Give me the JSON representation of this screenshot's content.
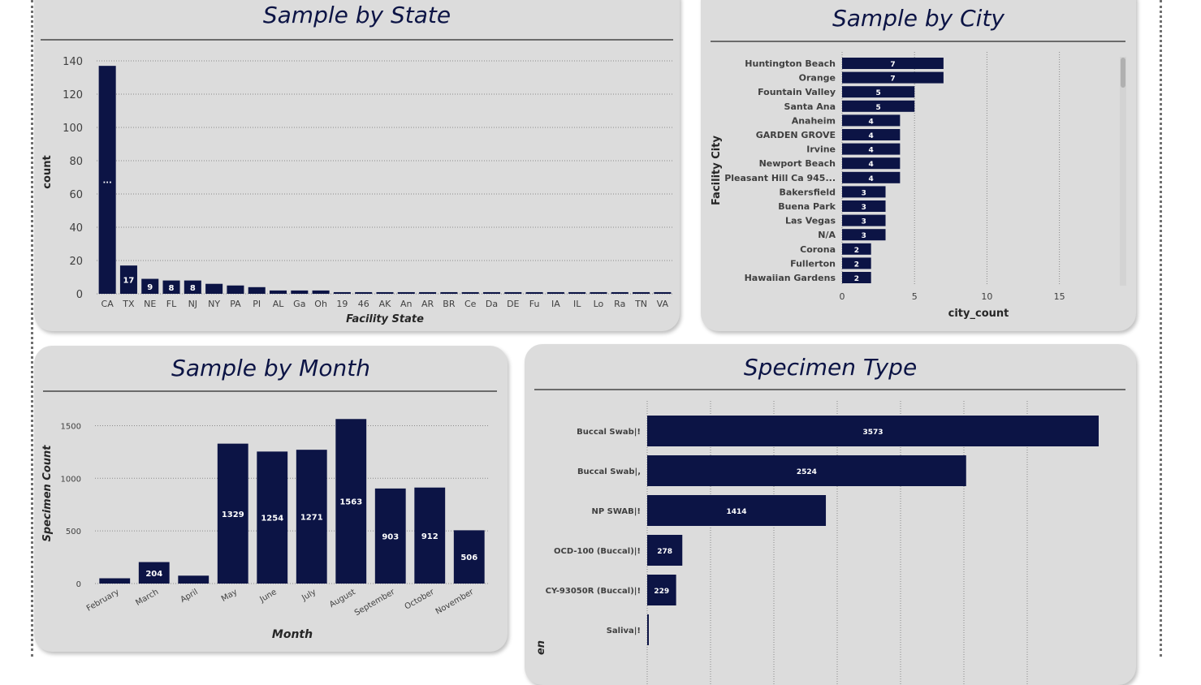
{
  "state": {
    "title": "Sample by State",
    "chart_data": {
      "type": "bar",
      "xlabel": "Facility State",
      "ylabel": "count",
      "ylim": [
        0,
        140
      ],
      "yticks": [
        0,
        20,
        40,
        60,
        80,
        100,
        120,
        140
      ],
      "categories": [
        "CA",
        "TX",
        "NE",
        "FL",
        "NJ",
        "NY",
        "PA",
        "PI",
        "AL",
        "Ga",
        "Oh",
        "19",
        "46",
        "AK",
        "An",
        "AR",
        "BR",
        "Ce",
        "Da",
        "DE",
        "Fu",
        "IA",
        "IL",
        "Lo",
        "Ra",
        "TN",
        "VA"
      ],
      "values": [
        137,
        17,
        9,
        8,
        8,
        6,
        5,
        4,
        2,
        2,
        2,
        1,
        1,
        1,
        1,
        1,
        1,
        1,
        1,
        1,
        1,
        1,
        1,
        1,
        1,
        1,
        1
      ],
      "data_labels": [
        "...",
        "17",
        "9",
        "8",
        "8",
        "",
        "",
        "",
        "",
        "",
        "",
        "",
        "",
        "",
        "",
        "",
        "",
        "",
        "",
        "",
        "",
        "",
        "",
        "",
        "",
        "",
        ""
      ],
      "grid": "dotted horizontal",
      "bar_color": "#0c1445"
    }
  },
  "city": {
    "title": "Sample by City",
    "chart_data": {
      "type": "bar",
      "orientation": "horizontal",
      "xlabel": "city_count",
      "ylabel": "Facility City",
      "xlim": [
        0,
        19
      ],
      "xticks": [
        0,
        5,
        10,
        15
      ],
      "categories": [
        "Huntington Beach",
        "Orange",
        "Fountain Valley",
        "Santa Ana",
        "Anaheim",
        "GARDEN GROVE",
        "Irvine",
        "Newport Beach",
        "Pleasant Hill Ca 945...",
        "Bakersfield",
        "Buena Park",
        "Las Vegas",
        "N/A",
        "Corona",
        "Fullerton",
        "Hawaiian Gardens"
      ],
      "values": [
        7,
        7,
        5,
        5,
        4,
        4,
        4,
        4,
        4,
        3,
        3,
        3,
        3,
        2,
        2,
        2
      ],
      "grid": "dotted vertical",
      "bar_color": "#0c1445"
    }
  },
  "month": {
    "title": "Sample by Month",
    "chart_data": {
      "type": "bar",
      "xlabel": "Month",
      "ylabel": "Specimen Count",
      "ylim": [
        0,
        1650
      ],
      "yticks": [
        0,
        500,
        1000,
        1500
      ],
      "categories": [
        "February",
        "March",
        "April",
        "May",
        "June",
        "July",
        "August",
        "September",
        "October",
        "November"
      ],
      "values": [
        50,
        204,
        75,
        1329,
        1254,
        1271,
        1563,
        903,
        912,
        506
      ],
      "data_labels": [
        "",
        "204",
        "",
        "1329",
        "1254",
        "1271",
        "1563",
        "903",
        "912",
        "506"
      ],
      "grid": "dotted horizontal",
      "bar_color": "#0c1445"
    }
  },
  "specimen": {
    "title": "Specimen Type",
    "chart_data": {
      "type": "bar",
      "orientation": "horizontal",
      "ylabel": "en",
      "xlim": [
        0,
        3700
      ],
      "categories": [
        "Buccal Swab|!",
        "Buccal Swab|,",
        "NP SWAB|!",
        "OCD-100 (Buccal)|!",
        "CY-93050R (Buccal)|!",
        "Saliva|!"
      ],
      "values": [
        3573,
        2524,
        1414,
        278,
        229,
        12
      ],
      "data_labels": [
        "3573",
        "2524",
        "1414",
        "278",
        "229",
        ""
      ],
      "grid": "dotted vertical",
      "bar_color": "#0c1445"
    }
  }
}
